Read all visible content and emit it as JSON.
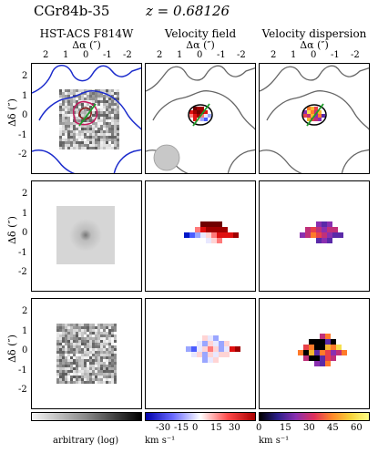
{
  "header": {
    "object_name": "CGr84b-35",
    "redshift": "z = 0.68126"
  },
  "columns": [
    {
      "title": "HST-ACS F814W",
      "unit": "Δα (″)"
    },
    {
      "title": "Velocity field",
      "unit": "Δα (″)"
    },
    {
      "title": "Velocity dispersion",
      "unit": "Δα (″)"
    }
  ],
  "x_ticks": [
    "2",
    "1",
    "0",
    "-1",
    "-2"
  ],
  "y_ticks": [
    "2",
    "1",
    "0",
    "-1",
    "-2"
  ],
  "y_label": "Δδ (″)",
  "colorbars": {
    "flux": {
      "label": "arbitrary (log)",
      "colors": [
        "#f4f4f4",
        "#888888",
        "#000000"
      ]
    },
    "velocity": {
      "ticks": [
        "-30",
        "-15",
        "0",
        "15",
        "30"
      ],
      "label": "km s⁻¹",
      "colors": [
        "#0000aa",
        "#6a6aff",
        "#ffffff",
        "#ff4a4a",
        "#aa0000"
      ]
    },
    "dispersion": {
      "ticks": [
        "0",
        "15",
        "30",
        "45",
        "60"
      ],
      "label": "km s⁻¹",
      "colors": [
        "#000000",
        "#2c1f8a",
        "#8a2fb0",
        "#e0305a",
        "#ff8a2a",
        "#f6d23a",
        "#ffff88"
      ]
    }
  }
}
